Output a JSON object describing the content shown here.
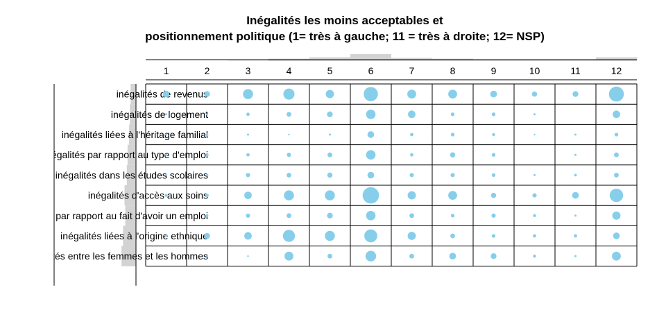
{
  "chart_data": {
    "type": "balloon",
    "title": "Inégalités les moins acceptables et\npositionnement politique (1= très à gauche; 11 = très à droite; 12= NSP)",
    "columns": [
      "1",
      "2",
      "3",
      "4",
      "5",
      "6",
      "7",
      "8",
      "9",
      "10",
      "11",
      "12"
    ],
    "rows": [
      "inégalités de revenus",
      "inégalités de logement",
      "inégalités liées à l'héritage familial",
      "inégalités par rapport au type d'emploi",
      "inégalités dans les études scolaires",
      "inégalités d'accès aux soins",
      "inégalités par rapport au fait d'avoir un emploi",
      "inégalités liées à l'origine ethnique",
      "inégalités entre les femmes et les hommes"
    ],
    "values": [
      [
        0.2,
        0.15,
        0.45,
        0.55,
        0.3,
        0.9,
        0.35,
        0.35,
        0.2,
        0.12,
        0.15,
        1.0
      ],
      [
        0.02,
        0.02,
        0.05,
        0.1,
        0.15,
        0.4,
        0.25,
        0.06,
        0.06,
        0.02,
        0.0,
        0.25
      ],
      [
        0.02,
        0.03,
        0.02,
        0.01,
        0.02,
        0.2,
        0.05,
        0.06,
        0.04,
        0.01,
        0.02,
        0.06
      ],
      [
        0.02,
        0.04,
        0.05,
        0.08,
        0.1,
        0.4,
        0.05,
        0.12,
        0.06,
        0.0,
        0.02,
        0.1
      ],
      [
        0.02,
        0.03,
        0.08,
        0.1,
        0.12,
        0.2,
        0.08,
        0.08,
        0.06,
        0.02,
        0.03,
        0.1
      ],
      [
        0.04,
        0.05,
        0.25,
        0.45,
        0.45,
        1.2,
        0.3,
        0.35,
        0.12,
        0.08,
        0.2,
        0.8
      ],
      [
        0.01,
        0.03,
        0.08,
        0.1,
        0.15,
        0.4,
        0.1,
        0.06,
        0.08,
        0.04,
        0.02,
        0.3
      ],
      [
        0.03,
        0.15,
        0.25,
        0.65,
        0.45,
        0.75,
        0.3,
        0.1,
        0.06,
        0.05,
        0.05,
        0.2
      ],
      [
        0.0,
        0.02,
        0.01,
        0.35,
        0.1,
        0.5,
        0.1,
        0.2,
        0.15,
        0.04,
        0.02,
        0.35
      ]
    ],
    "column_totals": [
      0.0,
      0.0,
      0.05,
      0.35,
      0.55,
      1.0,
      0.45,
      0.35,
      0.2,
      0.15,
      0.25,
      0.55
    ],
    "row_totals": [
      0.35,
      0.4,
      0.45,
      0.55,
      0.6,
      0.75,
      0.7,
      0.85,
      0.95
    ],
    "grid": true,
    "bubble_color": "#87ceeb",
    "margin_bar_color": "#d3d3d3"
  }
}
